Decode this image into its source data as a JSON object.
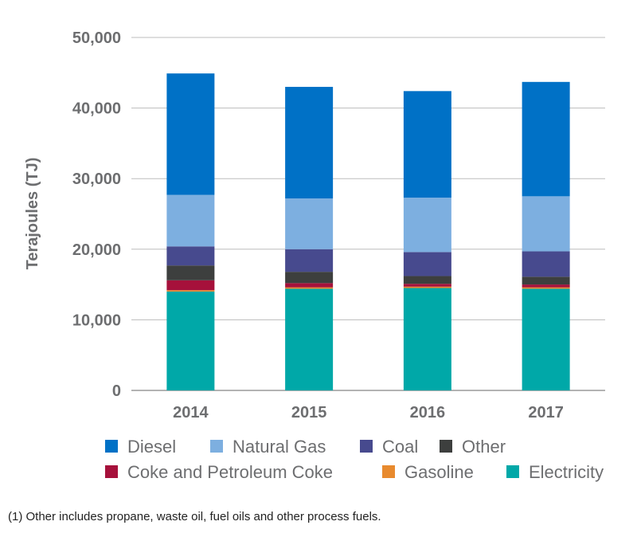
{
  "chart_data": {
    "type": "bar",
    "stacked": true,
    "categories": [
      "2014",
      "2015",
      "2016",
      "2017"
    ],
    "series": [
      {
        "name": "Electricity",
        "color": "#00a8a8",
        "values": [
          14000,
          14400,
          14500,
          14400
        ]
      },
      {
        "name": "Gasoline",
        "color": "#e88a2e",
        "values": [
          200,
          200,
          200,
          200
        ]
      },
      {
        "name": "Coke and Petroleum Coke",
        "color": "#a6113b",
        "values": [
          1400,
          600,
          400,
          400
        ]
      },
      {
        "name": "Other",
        "color": "#3d3f3e",
        "values": [
          2100,
          1600,
          1100,
          1100
        ]
      },
      {
        "name": "Coal",
        "color": "#474a8e",
        "values": [
          2700,
          3200,
          3400,
          3600
        ]
      },
      {
        "name": "Natural Gas",
        "color": "#7dafe0",
        "values": [
          7300,
          7200,
          7700,
          7800
        ]
      },
      {
        "name": "Diesel",
        "color": "#0071c6",
        "values": [
          17200,
          15800,
          15100,
          16200
        ]
      }
    ],
    "ylabel": "Terajoules (TJ)",
    "xlabel": "",
    "ylim": [
      0,
      50000
    ],
    "yticks": [
      "0",
      "10,000",
      "20,000",
      "30,000",
      "40,000",
      "50,000"
    ],
    "grid": true,
    "legend_order": [
      "Diesel",
      "Natural Gas",
      "Coal",
      "Other",
      "Coke and Petroleum Coke",
      "Gasoline",
      "Electricity"
    ],
    "legend_position": "bottom"
  },
  "footnote": "(1) Other includes propane, waste oil, fuel oils and other process fuels."
}
